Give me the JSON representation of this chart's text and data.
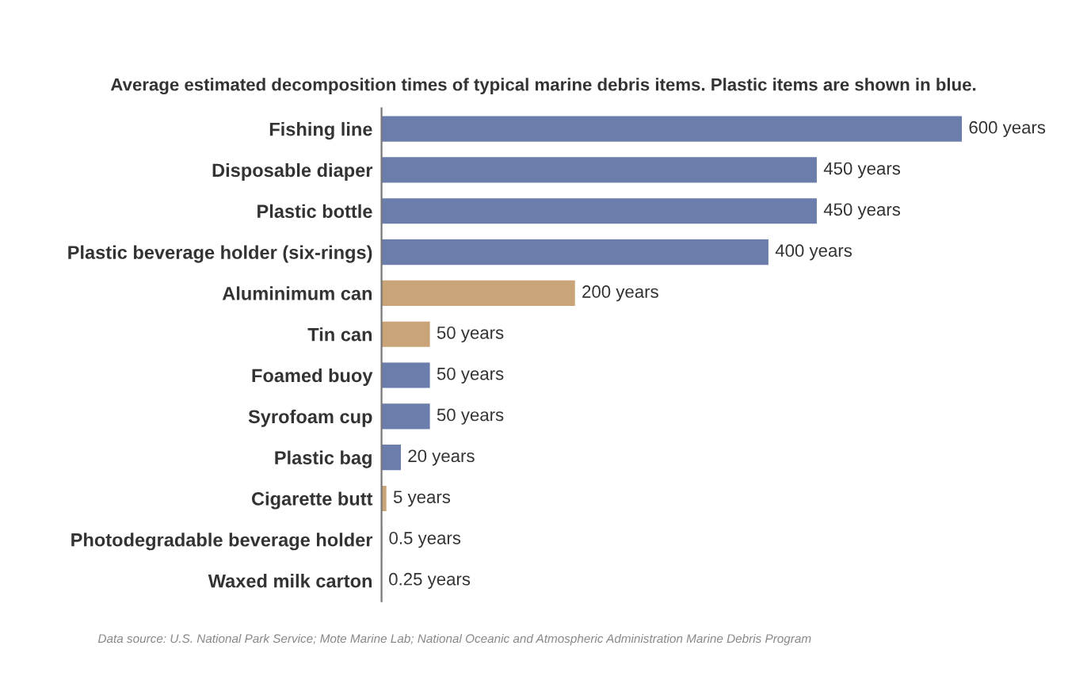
{
  "chart_data": {
    "type": "bar",
    "orientation": "horizontal",
    "title": "Average estimated decomposition times of typical marine debris items. Plastic items are shown in blue.",
    "categories": [
      "Fishing line",
      "Disposable diaper",
      "Plastic bottle",
      "Plastic beverage holder (six-rings)",
      "Aluminimum can",
      "Tin can",
      "Foamed buoy",
      "Syrofoam cup",
      "Plastic bag",
      "Cigarette butt",
      "Photodegradable beverage holder",
      "Waxed milk carton"
    ],
    "values": [
      600,
      450,
      450,
      400,
      200,
      50,
      50,
      50,
      20,
      5,
      0.5,
      0.25
    ],
    "colors": [
      "#6b7eab",
      "#6b7eab",
      "#6b7eab",
      "#6b7eab",
      "#c9a478",
      "#c9a478",
      "#6b7eab",
      "#6b7eab",
      "#6b7eab",
      "#c9a478",
      "#6b7eab",
      "#c9a478"
    ],
    "value_labels": [
      "600 years",
      "450 years",
      "450 years",
      "400 years",
      "200 years",
      "50 years",
      "50 years",
      "50 years",
      "20 years",
      "5 years",
      "0.5 years",
      "0.25 years"
    ],
    "annotations": [
      "Data source: U.S. National Park Service; Mote Marine Lab; National Oceanic and Atmospheric Administration Marine Debris Program"
    ],
    "grid": false,
    "legend": false
  }
}
